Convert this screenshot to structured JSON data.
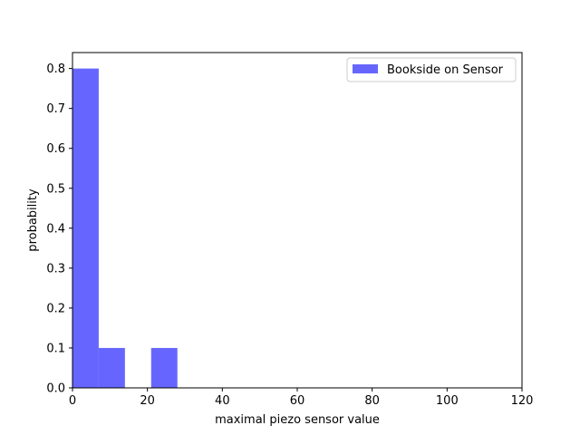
{
  "chart_data": {
    "type": "bar",
    "xlabel": "maximal piezo sensor value",
    "ylabel": "probability",
    "xlim": [
      0,
      120
    ],
    "ylim": [
      0,
      0.84
    ],
    "x_ticks": [
      0,
      20,
      40,
      60,
      80,
      100,
      120
    ],
    "x_tick_labels": [
      "0",
      "20",
      "40",
      "60",
      "80",
      "100",
      "120"
    ],
    "y_ticks": [
      0.0,
      0.1,
      0.2,
      0.3,
      0.4,
      0.5,
      0.6,
      0.7,
      0.8
    ],
    "y_tick_labels": [
      "0.0",
      "0.1",
      "0.2",
      "0.3",
      "0.4",
      "0.5",
      "0.6",
      "0.7",
      "0.8"
    ],
    "grid": false,
    "legend_position": "top-right",
    "series": [
      {
        "name": "Bookside on Sensor",
        "color": "#6666ff",
        "bins": [
          {
            "x0": 0,
            "x1": 7,
            "value": 0.8
          },
          {
            "x0": 7,
            "x1": 14,
            "value": 0.1
          },
          {
            "x0": 14,
            "x1": 21,
            "value": 0.0
          },
          {
            "x0": 21,
            "x1": 28,
            "value": 0.1
          }
        ]
      }
    ]
  }
}
